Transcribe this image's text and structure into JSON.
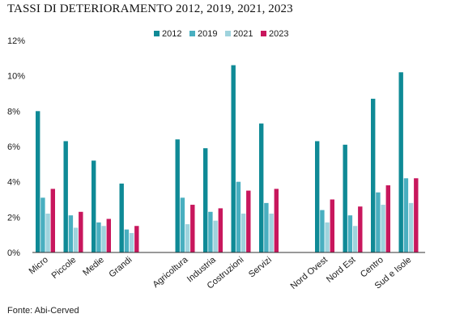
{
  "page": {
    "title": "TASSI DI DETERIORAMENTO 2012, 2019, 2021, 2023",
    "source": "Fonte: Abi-Cerved"
  },
  "colors": {
    "2012": "#0f8a96",
    "2019": "#49afc0",
    "2021": "#9fd3dd",
    "2023": "#c8175d",
    "axis": "#333333",
    "text": "#1a1a1a"
  },
  "chart_data": {
    "type": "bar",
    "title": "TASSI DI DETERIORAMENTO 2012, 2019, 2021, 2023",
    "xlabel": "",
    "ylabel": "",
    "ylim": [
      0,
      12
    ],
    "yticks": [
      "0%",
      "2%",
      "4%",
      "6%",
      "8%",
      "10%",
      "12%"
    ],
    "ytick_values": [
      0,
      2,
      4,
      6,
      8,
      10,
      12
    ],
    "grid": false,
    "legend_position": "top-center",
    "categories": [
      "Micro",
      "Piccole",
      "Medie",
      "Grandi",
      "Agricoltura",
      "Industria",
      "Costruzioni",
      "Servizi",
      "Nord Ovest",
      "Nord Est",
      "Centro",
      "Sud e Isole"
    ],
    "groups": [
      [
        "Micro",
        "Piccole",
        "Medie",
        "Grandi"
      ],
      [
        "Agricoltura",
        "Industria",
        "Costruzioni",
        "Servizi"
      ],
      [
        "Nord Ovest",
        "Nord Est",
        "Centro",
        "Sud e Isole"
      ]
    ],
    "series": [
      {
        "name": "2012",
        "values": [
          8.0,
          6.3,
          5.2,
          3.9,
          6.4,
          5.9,
          10.6,
          7.3,
          6.3,
          6.1,
          8.7,
          10.2
        ]
      },
      {
        "name": "2019",
        "values": [
          3.1,
          2.1,
          1.7,
          1.3,
          3.1,
          2.3,
          4.0,
          2.8,
          2.4,
          2.1,
          3.4,
          4.2
        ]
      },
      {
        "name": "2021",
        "values": [
          2.2,
          1.4,
          1.5,
          1.1,
          1.6,
          1.8,
          2.2,
          2.2,
          1.7,
          1.5,
          2.7,
          2.8
        ]
      },
      {
        "name": "2023",
        "values": [
          3.6,
          2.3,
          1.9,
          1.5,
          2.7,
          2.5,
          3.5,
          3.6,
          3.0,
          2.6,
          3.8,
          4.2
        ]
      }
    ]
  }
}
